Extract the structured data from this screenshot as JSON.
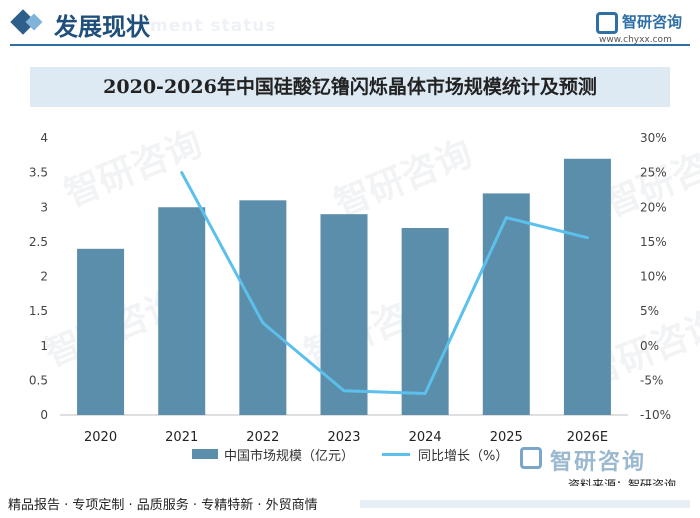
{
  "header": {
    "title": "发展现状",
    "subtitle": "ment status",
    "logo_name": "智研咨询",
    "logo_url": "www.chyxx.com"
  },
  "chart_data": {
    "type": "bar",
    "title": "2020-2026年中国硅酸钇镥闪烁晶体市场规模统计及预测",
    "categories": [
      "2020",
      "2021",
      "2022",
      "2023",
      "2024",
      "2025",
      "2026E"
    ],
    "series": [
      {
        "name": "中国市场规模（亿元）",
        "type": "bar",
        "axis": "left",
        "values": [
          2.4,
          3.0,
          3.1,
          2.9,
          2.7,
          3.2,
          3.7
        ],
        "color": "#5b8eab"
      },
      {
        "name": "同比增长（%）",
        "type": "line",
        "axis": "right",
        "values": [
          null,
          25.0,
          3.3,
          -6.5,
          -6.9,
          18.5,
          15.6
        ],
        "color": "#5bc0eb"
      }
    ],
    "ylim": [
      0,
      4
    ],
    "yticks": [
      "0",
      "0.5",
      "1",
      "1.5",
      "2",
      "2.5",
      "3",
      "3.5",
      "4"
    ],
    "y2lim": [
      -10,
      30
    ],
    "y2ticks": [
      "-10%",
      "-5%",
      "0%",
      "5%",
      "10%",
      "15%",
      "20%",
      "25%",
      "30%"
    ],
    "grid": false,
    "legend": "bottom"
  },
  "legend": {
    "bar_label": "中国市场规模（亿元）",
    "line_label": "同比增长（%）"
  },
  "watermark": "智研咨询",
  "bottom_logo": "智研咨询",
  "source": "资料来源：智研咨询",
  "footer": "精品报告 · 专项定制 · 品质服务 · 专精特新 · 外贸商情"
}
